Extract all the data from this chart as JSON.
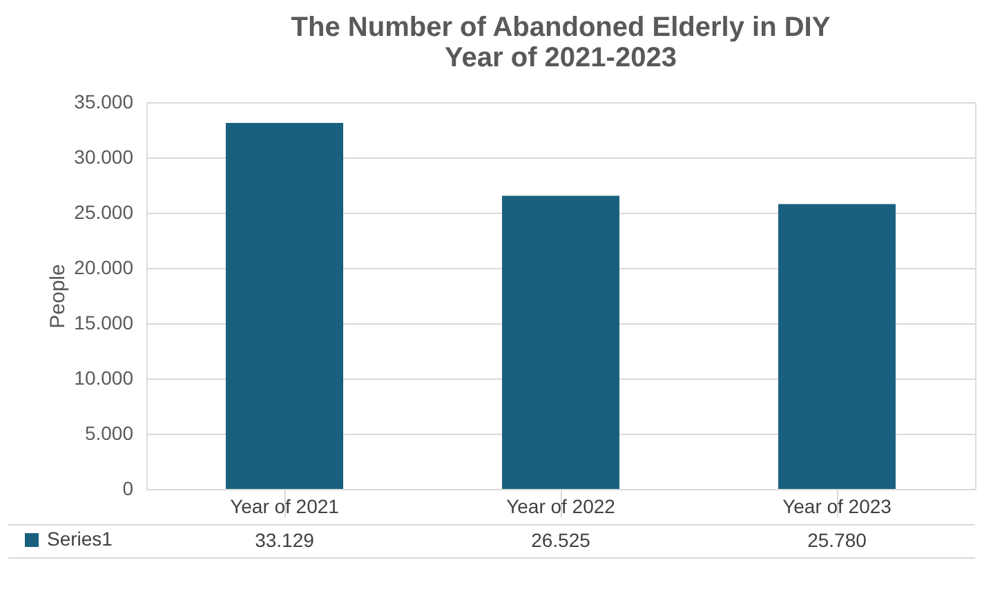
{
  "chart_data": {
    "type": "bar",
    "title": "The Number of Abandoned Elderly in DIY\nYear of 2021-2023",
    "ylabel": "People",
    "categories": [
      "Year of 2021",
      "Year of 2022",
      "Year of 2023"
    ],
    "series": [
      {
        "name": "Series1",
        "color": "#19607f",
        "values": [
          33129,
          26525,
          25780
        ],
        "value_labels": [
          "33.129",
          "26.525",
          "25.780"
        ]
      }
    ],
    "ylim": [
      0,
      35000
    ],
    "yticks": [
      {
        "value": 0,
        "label": "0"
      },
      {
        "value": 5000,
        "label": "5.000"
      },
      {
        "value": 10000,
        "label": "10.000"
      },
      {
        "value": 15000,
        "label": "15.000"
      },
      {
        "value": 20000,
        "label": "20.000"
      },
      {
        "value": 25000,
        "label": "25.000"
      },
      {
        "value": 30000,
        "label": "30.000"
      },
      {
        "value": 35000,
        "label": "35.000"
      }
    ],
    "grid": "y",
    "legend": "bottom left"
  }
}
